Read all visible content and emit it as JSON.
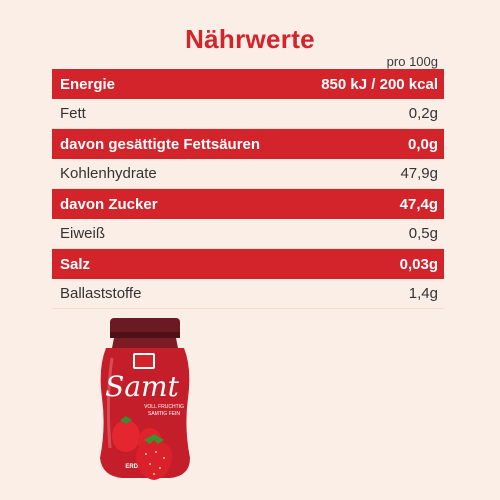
{
  "title": "Nährwerte",
  "unit_label": "pro 100g",
  "rows": [
    {
      "label": "Energie",
      "value": "850 kJ / 200 kcal",
      "highlight": true
    },
    {
      "label": "Fett",
      "value": "0,2g",
      "highlight": false
    },
    {
      "label": "davon gesättigte Fettsäuren",
      "value": "0,0g",
      "highlight": true
    },
    {
      "label": "Kohlenhydrate",
      "value": "47,9g",
      "highlight": false
    },
    {
      "label": "davon Zucker",
      "value": "47,4g",
      "highlight": true
    },
    {
      "label": "Eiweiß",
      "value": "0,5g",
      "highlight": false
    },
    {
      "label": "Salz",
      "value": "0,03g",
      "highlight": true
    },
    {
      "label": "Ballaststoffe",
      "value": "1,4g",
      "highlight": false
    }
  ],
  "product": {
    "brand_name": "Samt",
    "tagline_1": "VOLL FRUCHTIG",
    "tagline_2": "SAMTIG FEIN",
    "variety": "ERDBEERE"
  },
  "colors": {
    "accent_red": "#d3232b",
    "background": "#fbeee6"
  }
}
